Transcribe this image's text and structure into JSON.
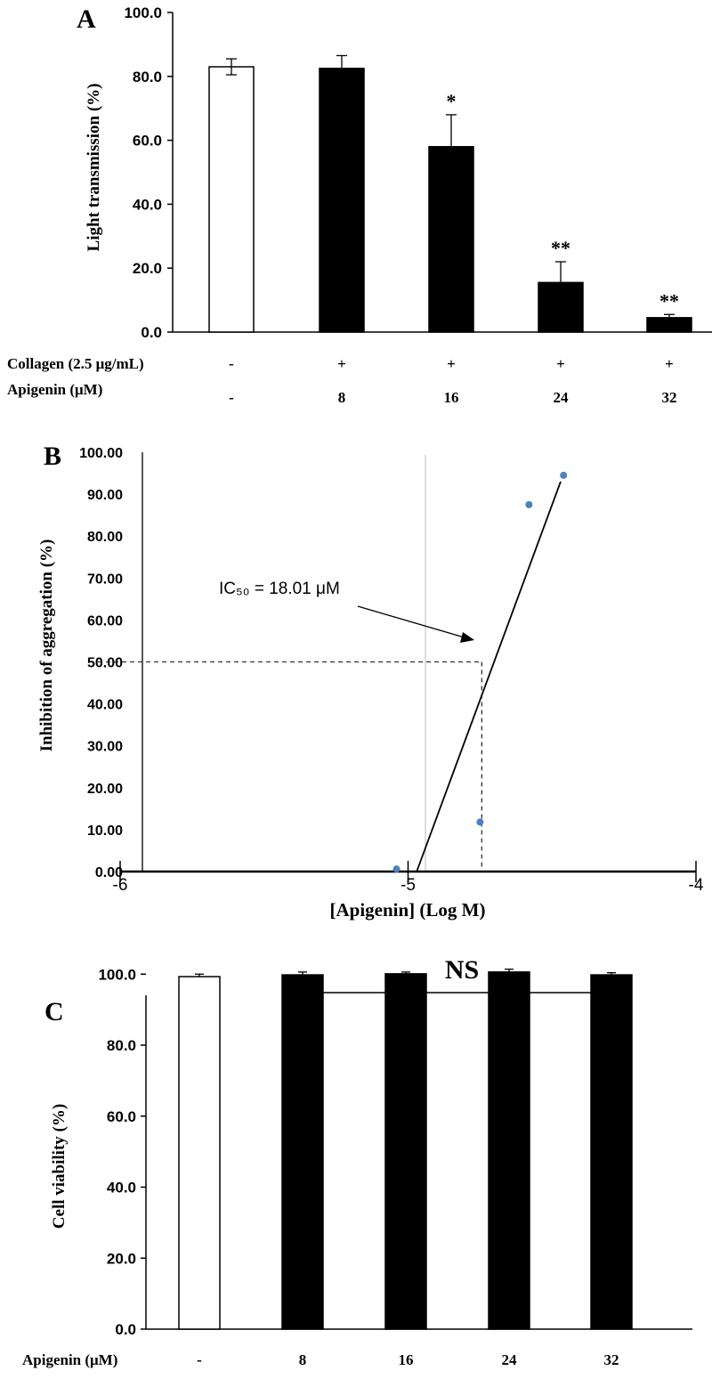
{
  "chart_data": [
    {
      "panel": "A",
      "type": "bar",
      "ylabel": "Light transmission (%)",
      "ylim": [
        0,
        100
      ],
      "yticks": [
        "0.0",
        "20.0",
        "40.0",
        "60.0",
        "80.0",
        "100.0"
      ],
      "categories": [
        "-",
        "8",
        "16",
        "24",
        "32"
      ],
      "values": [
        83.0,
        82.5,
        58.0,
        15.5,
        4.5
      ],
      "errors": [
        2.5,
        4.0,
        10.0,
        6.5,
        1.0
      ],
      "fills": [
        "#ffffff",
        "#000000",
        "#000000",
        "#000000",
        "#000000"
      ],
      "significance": [
        "",
        "",
        "*",
        "**",
        "**"
      ],
      "row_labels": [
        {
          "label": "Collagen (2.5 μg/mL)",
          "values": [
            "-",
            "+",
            "+",
            "+",
            "+"
          ]
        },
        {
          "label": "Apigenin (μM)",
          "values": [
            "-",
            "8",
            "16",
            "24",
            "32"
          ]
        }
      ]
    },
    {
      "panel": "B",
      "type": "scatter",
      "xlabel": "[Apigenin] (Log M)",
      "ylabel": "Inhibition of aggregation (%)",
      "xlim": [
        -6,
        -4
      ],
      "ylim": [
        0,
        100
      ],
      "xticks": [
        "-6",
        "-5",
        "-4"
      ],
      "yticks": [
        "0.00",
        "10.00",
        "20.00",
        "30.00",
        "40.00",
        "50.00",
        "60.00",
        "70.00",
        "80.00",
        "90.00",
        "100.00"
      ],
      "points": [
        {
          "x": -5.04,
          "y": 0.6
        },
        {
          "x": -4.75,
          "y": 11.8
        },
        {
          "x": -4.58,
          "y": 87.5
        },
        {
          "x": -4.46,
          "y": 94.5
        }
      ],
      "trendline": [
        {
          "x": -4.97,
          "y": 0
        },
        {
          "x": -4.47,
          "y": 93
        }
      ],
      "ic50": {
        "x": -4.744,
        "y": 50
      },
      "annotation": "IC₅₀ = 18.01 μM"
    },
    {
      "panel": "C",
      "type": "bar",
      "ylabel": "Cell viability (%)",
      "ylim": [
        0,
        110
      ],
      "yticks": [
        "0.0",
        "20.0",
        "40.0",
        "60.0",
        "80.0",
        "100.0"
      ],
      "categories": [
        "-",
        "8",
        "16",
        "24",
        "32"
      ],
      "values": [
        99.3,
        99.8,
        100.1,
        100.6,
        99.8
      ],
      "errors": [
        0.7,
        0.8,
        0.5,
        0.8,
        0.6
      ],
      "fills": [
        "#ffffff",
        "#000000",
        "#000000",
        "#000000",
        "#000000"
      ],
      "annotation": "NS",
      "row_label": "Apigenin (μM)"
    }
  ]
}
